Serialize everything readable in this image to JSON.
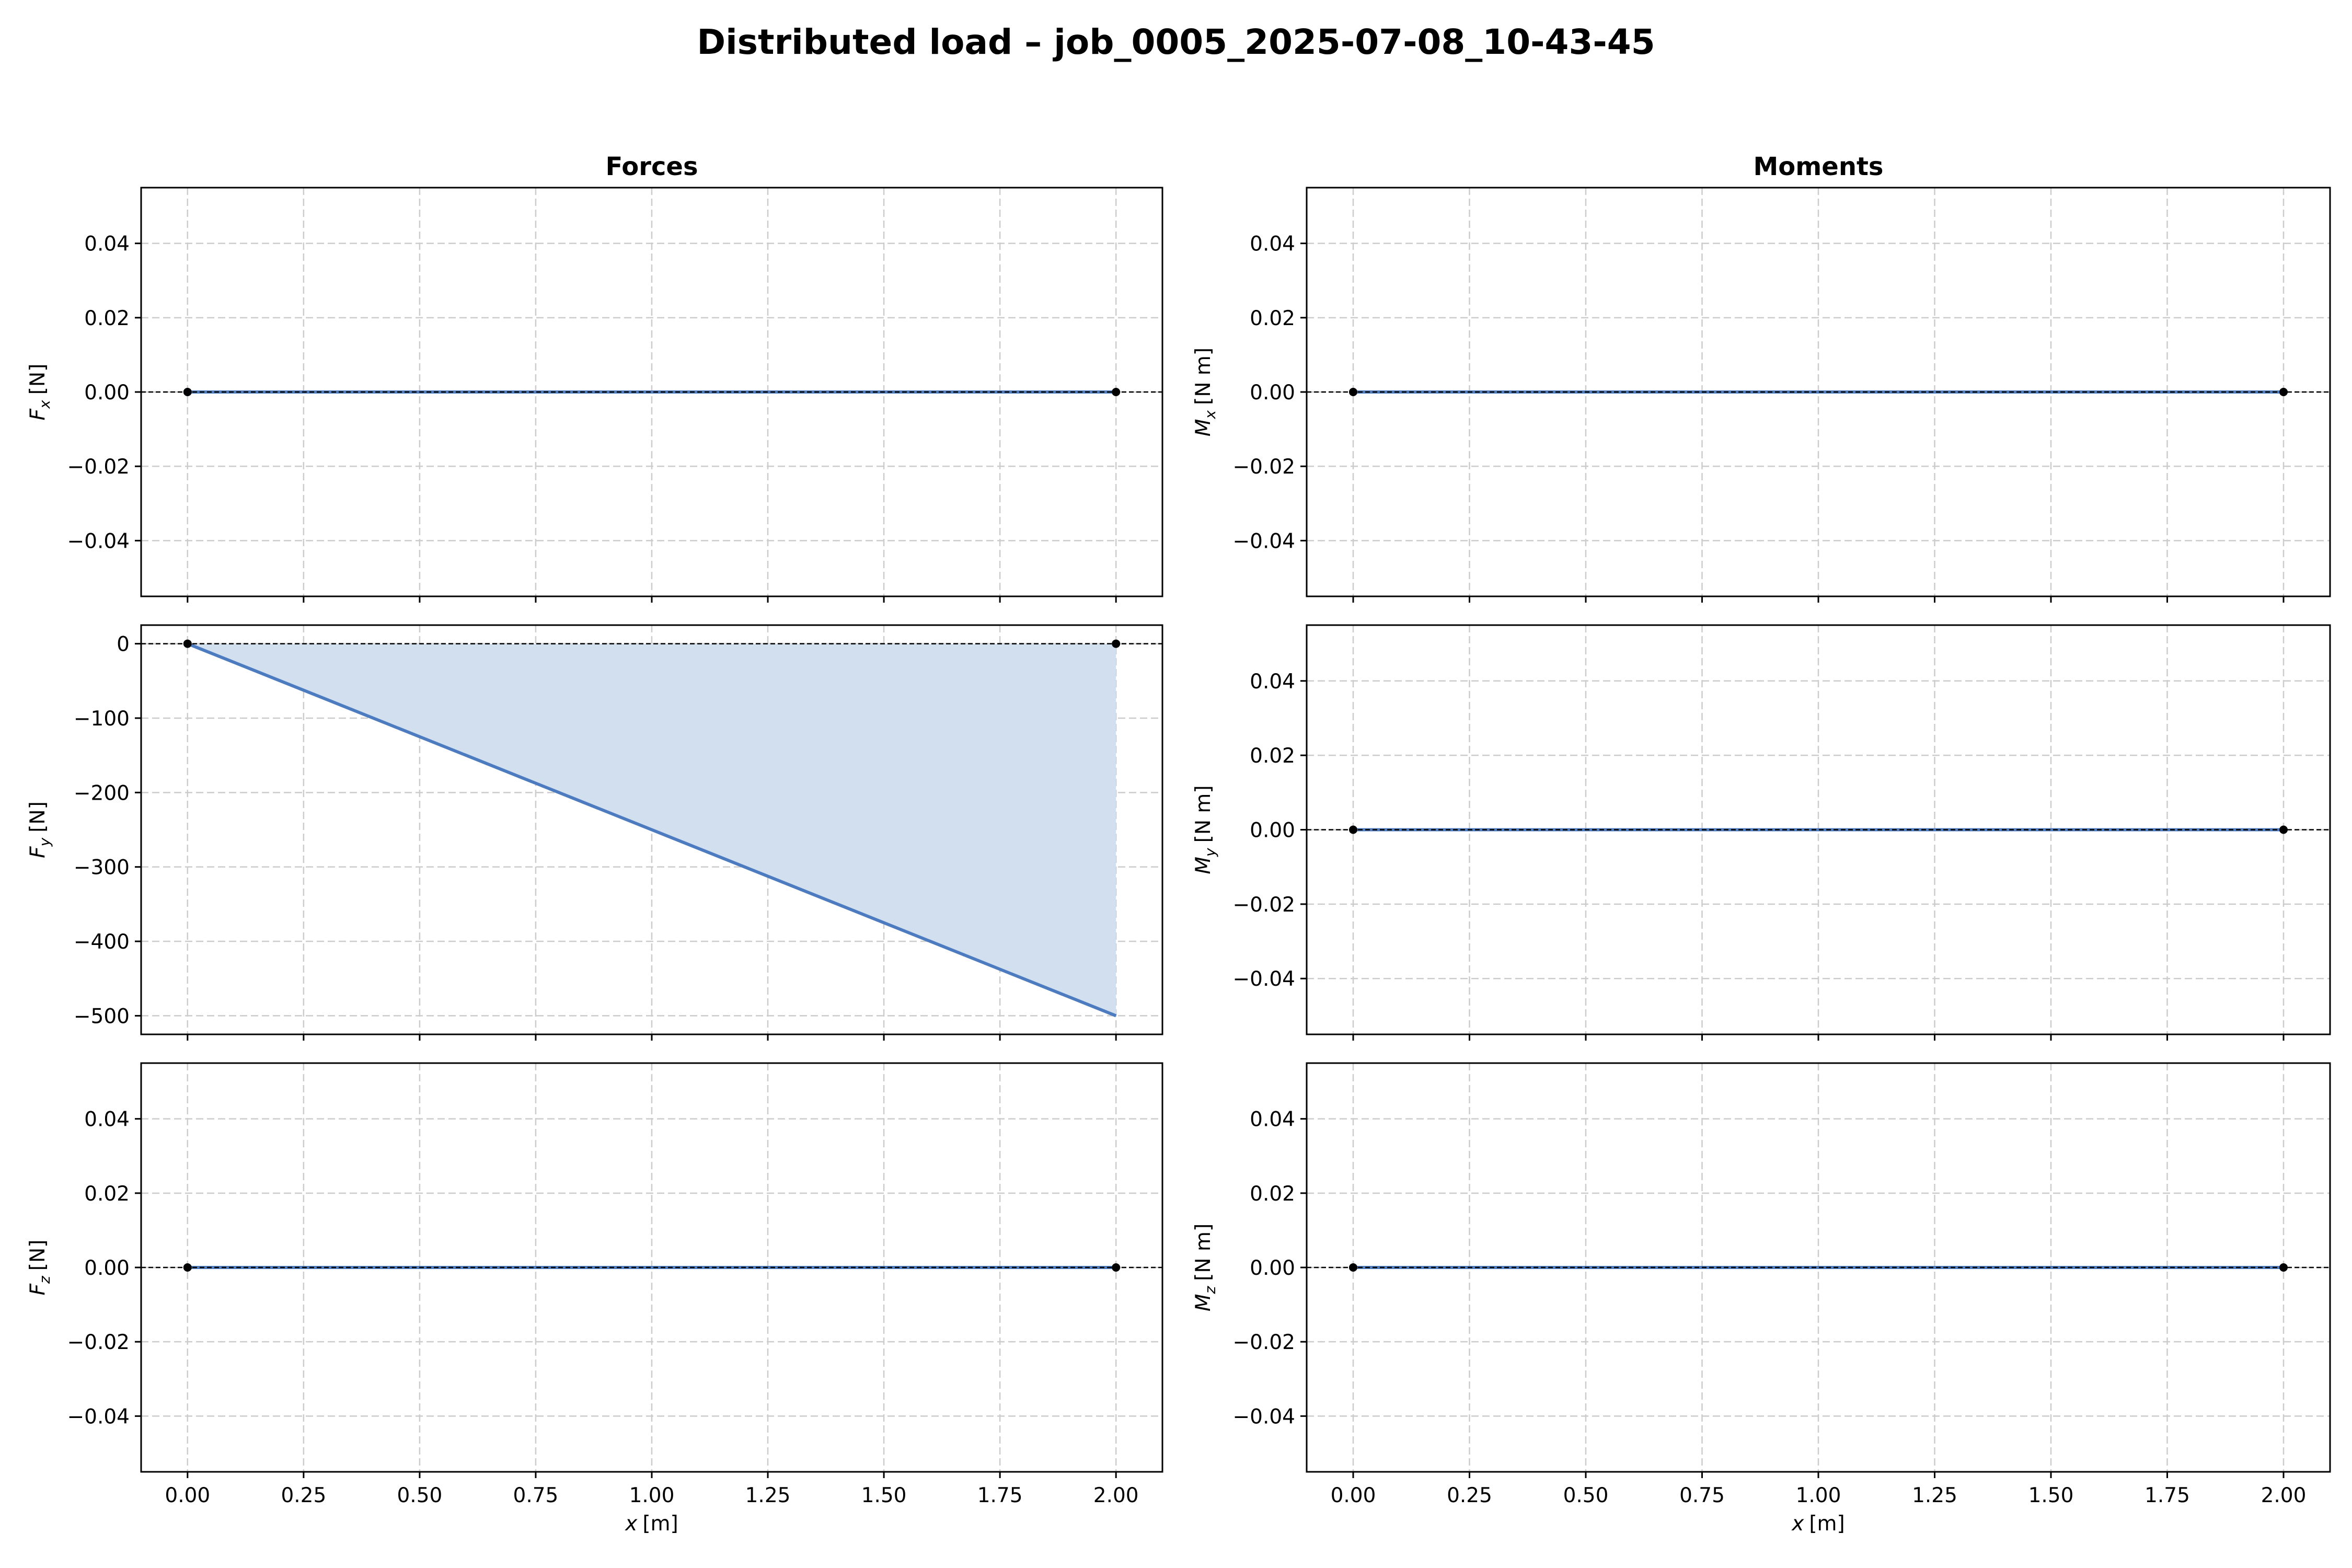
{
  "figure": {
    "title": "Distributed load – job_0005_2025-07-08_10-43-45",
    "column_titles": [
      "Forces",
      "Moments"
    ]
  },
  "chart_data": [
    {
      "type": "line",
      "column": "Forces",
      "row": 0,
      "ylabel": "F_x [N]",
      "ylabel_main": "F",
      "ylabel_sub": "x",
      "ylabel_unit": "[N]",
      "xlim": [
        -0.1,
        2.1
      ],
      "ylim": [
        -0.055,
        0.055
      ],
      "yticks": [
        0.04,
        0.02,
        0.0,
        -0.02,
        -0.04
      ],
      "ytick_labels": [
        "0.04",
        "0.02",
        "0.00",
        "−0.02",
        "−0.04"
      ],
      "xticks": [
        0,
        0.25,
        0.5,
        0.75,
        1.0,
        1.25,
        1.5,
        1.75,
        2.0
      ],
      "xtick_labels": [],
      "xlabel": "",
      "xlabel_main": "",
      "xlabel_unit": "",
      "series": [
        {
          "x": [
            0,
            2
          ],
          "y": [
            0,
            0
          ]
        }
      ],
      "endpoints": [
        {
          "x": 0,
          "y": 0
        },
        {
          "x": 2,
          "y": 0
        }
      ],
      "fill": false,
      "grid": true,
      "zero_line": true
    },
    {
      "type": "area",
      "column": "Forces",
      "row": 1,
      "ylabel": "F_y [N]",
      "ylabel_main": "F",
      "ylabel_sub": "y",
      "ylabel_unit": "[N]",
      "xlim": [
        -0.1,
        2.1
      ],
      "ylim": [
        -525,
        25
      ],
      "yticks": [
        0,
        -100,
        -200,
        -300,
        -400,
        -500
      ],
      "ytick_labels": [
        "0",
        "−100",
        "−200",
        "−300",
        "−400",
        "−500"
      ],
      "xticks": [
        0,
        0.25,
        0.5,
        0.75,
        1.0,
        1.25,
        1.5,
        1.75,
        2.0
      ],
      "xtick_labels": [],
      "xlabel": "",
      "xlabel_main": "",
      "xlabel_unit": "",
      "series": [
        {
          "x": [
            0,
            2
          ],
          "y": [
            0,
            -500
          ]
        }
      ],
      "endpoints": [
        {
          "x": 0,
          "y": 0
        },
        {
          "x": 2,
          "y": 0
        }
      ],
      "fill": true,
      "grid": true,
      "zero_line": true
    },
    {
      "type": "line",
      "column": "Forces",
      "row": 2,
      "ylabel": "F_z [N]",
      "ylabel_main": "F",
      "ylabel_sub": "z",
      "ylabel_unit": "[N]",
      "xlim": [
        -0.1,
        2.1
      ],
      "ylim": [
        -0.055,
        0.055
      ],
      "yticks": [
        0.04,
        0.02,
        0.0,
        -0.02,
        -0.04
      ],
      "ytick_labels": [
        "0.04",
        "0.02",
        "0.00",
        "−0.02",
        "−0.04"
      ],
      "xticks": [
        0,
        0.25,
        0.5,
        0.75,
        1.0,
        1.25,
        1.5,
        1.75,
        2.0
      ],
      "xtick_labels": [
        "0.00",
        "0.25",
        "0.50",
        "0.75",
        "1.00",
        "1.25",
        "1.50",
        "1.75",
        "2.00"
      ],
      "xlabel": "x [m]",
      "xlabel_main": "x",
      "xlabel_unit": "[m]",
      "series": [
        {
          "x": [
            0,
            2
          ],
          "y": [
            0,
            0
          ]
        }
      ],
      "endpoints": [
        {
          "x": 0,
          "y": 0
        },
        {
          "x": 2,
          "y": 0
        }
      ],
      "fill": false,
      "grid": true,
      "zero_line": true
    },
    {
      "type": "line",
      "column": "Moments",
      "row": 0,
      "ylabel": "M_x [N m]",
      "ylabel_main": "M",
      "ylabel_sub": "x",
      "ylabel_unit": "[N m]",
      "xlim": [
        -0.1,
        2.1
      ],
      "ylim": [
        -0.055,
        0.055
      ],
      "yticks": [
        0.04,
        0.02,
        0.0,
        -0.02,
        -0.04
      ],
      "ytick_labels": [
        "0.04",
        "0.02",
        "0.00",
        "−0.02",
        "−0.04"
      ],
      "xticks": [
        0,
        0.25,
        0.5,
        0.75,
        1.0,
        1.25,
        1.5,
        1.75,
        2.0
      ],
      "xtick_labels": [],
      "xlabel": "",
      "xlabel_main": "",
      "xlabel_unit": "",
      "series": [
        {
          "x": [
            0,
            2
          ],
          "y": [
            0,
            0
          ]
        }
      ],
      "endpoints": [
        {
          "x": 0,
          "y": 0
        },
        {
          "x": 2,
          "y": 0
        }
      ],
      "fill": false,
      "grid": true,
      "zero_line": true
    },
    {
      "type": "line",
      "column": "Moments",
      "row": 1,
      "ylabel": "M_y [N m]",
      "ylabel_main": "M",
      "ylabel_sub": "y",
      "ylabel_unit": "[N m]",
      "xlim": [
        -0.1,
        2.1
      ],
      "ylim": [
        -0.055,
        0.055
      ],
      "yticks": [
        0.04,
        0.02,
        0.0,
        -0.02,
        -0.04
      ],
      "ytick_labels": [
        "0.04",
        "0.02",
        "0.00",
        "−0.02",
        "−0.04"
      ],
      "xticks": [
        0,
        0.25,
        0.5,
        0.75,
        1.0,
        1.25,
        1.5,
        1.75,
        2.0
      ],
      "xtick_labels": [],
      "xlabel": "",
      "xlabel_main": "",
      "xlabel_unit": "",
      "series": [
        {
          "x": [
            0,
            2
          ],
          "y": [
            0,
            0
          ]
        }
      ],
      "endpoints": [
        {
          "x": 0,
          "y": 0
        },
        {
          "x": 2,
          "y": 0
        }
      ],
      "fill": false,
      "grid": true,
      "zero_line": true
    },
    {
      "type": "line",
      "column": "Moments",
      "row": 2,
      "ylabel": "M_z [N m]",
      "ylabel_main": "M",
      "ylabel_sub": "z",
      "ylabel_unit": "[N m]",
      "xlim": [
        -0.1,
        2.1
      ],
      "ylim": [
        -0.055,
        0.055
      ],
      "yticks": [
        0.04,
        0.02,
        0.0,
        -0.02,
        -0.04
      ],
      "ytick_labels": [
        "0.04",
        "0.02",
        "0.00",
        "−0.02",
        "−0.04"
      ],
      "xticks": [
        0,
        0.25,
        0.5,
        0.75,
        1.0,
        1.25,
        1.5,
        1.75,
        2.0
      ],
      "xtick_labels": [
        "0.00",
        "0.25",
        "0.50",
        "0.75",
        "1.00",
        "1.25",
        "1.50",
        "1.75",
        "2.00"
      ],
      "xlabel": "x [m]",
      "xlabel_main": "x",
      "xlabel_unit": "[m]",
      "series": [
        {
          "x": [
            0,
            2
          ],
          "y": [
            0,
            0
          ]
        }
      ],
      "endpoints": [
        {
          "x": 0,
          "y": 0
        },
        {
          "x": 2,
          "y": 0
        }
      ],
      "fill": false,
      "grid": true,
      "zero_line": true
    }
  ],
  "colors": {
    "line": "#4c7bbf",
    "fill": "#d2dfee",
    "grid": "#cccccc",
    "zero_line": "#000000",
    "endpoint": "#000000",
    "axes": "#000000"
  }
}
